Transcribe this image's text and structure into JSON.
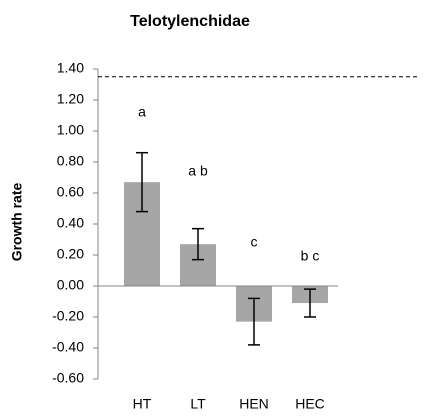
{
  "chart_data": {
    "type": "bar",
    "title": "Telotylenchidae",
    "y_label": "Growth rate",
    "categories": [
      "HT",
      "LT",
      "HEN",
      "HEC"
    ],
    "values": [
      0.67,
      0.27,
      -0.23,
      -0.11
    ],
    "errors": [
      0.19,
      0.1,
      0.15,
      0.09
    ],
    "annotations": [
      "a",
      "a b",
      "c",
      "b c"
    ],
    "color": "#a6a6a6",
    "reference_line": 1.35,
    "ylim": [
      -0.6,
      1.4
    ],
    "yticks": [
      {
        "value": -0.6,
        "label": "-0.60"
      },
      {
        "value": -0.4,
        "label": "-0.40"
      },
      {
        "value": -0.2,
        "label": "-0.20"
      },
      {
        "value": 0,
        "label": "0.00"
      },
      {
        "value": 0.2,
        "label": "0.20"
      },
      {
        "value": 0.4,
        "label": "0.40"
      },
      {
        "value": 0.6,
        "label": "0.60"
      },
      {
        "value": 0.8,
        "label": "0.80"
      },
      {
        "value": 1.0,
        "label": "1.00"
      },
      {
        "value": 1.2,
        "label": "1.20"
      },
      {
        "value": 1.4,
        "label": "1.40"
      }
    ]
  }
}
